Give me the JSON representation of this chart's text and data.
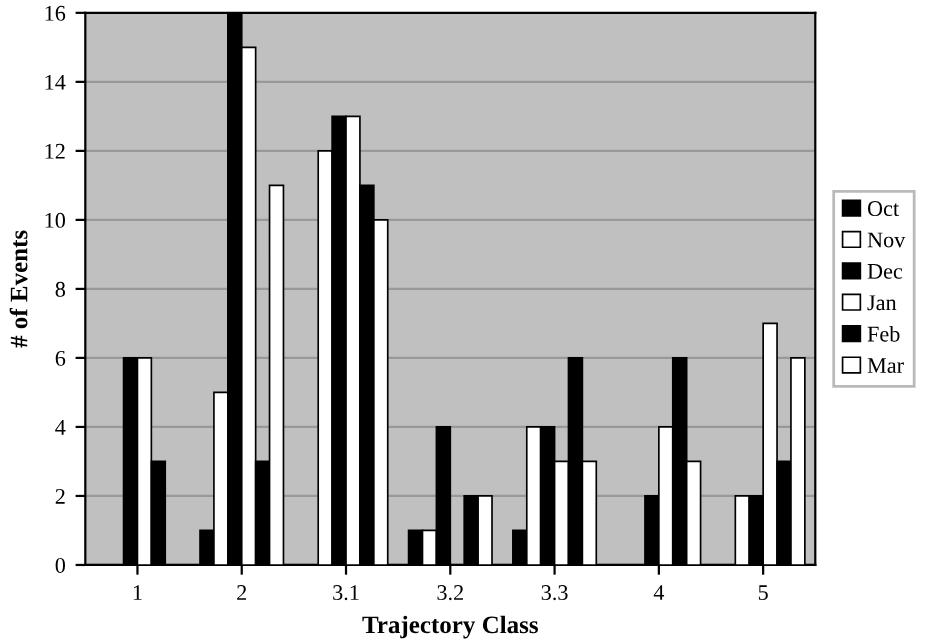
{
  "chart_data": {
    "type": "bar",
    "xlabel": "Trajectory Class",
    "ylabel": "# of Events",
    "categories": [
      "1",
      "2",
      "3.1",
      "3.2",
      "3.3",
      "4",
      "5"
    ],
    "series": [
      {
        "name": "Oct",
        "color": "#000000",
        "values": [
          0,
          1,
          0,
          1,
          1,
          0,
          0
        ]
      },
      {
        "name": "Nov",
        "color": "#ffffff",
        "values": [
          0,
          5,
          12,
          1,
          4,
          0,
          2
        ]
      },
      {
        "name": "Dec",
        "color": "#000000",
        "values": [
          6,
          16,
          13,
          4,
          4,
          2,
          2
        ]
      },
      {
        "name": "Jan",
        "color": "#ffffff",
        "values": [
          6,
          15,
          13,
          0,
          3,
          4,
          7
        ]
      },
      {
        "name": "Feb",
        "color": "#000000",
        "values": [
          3,
          3,
          11,
          2,
          6,
          6,
          3
        ]
      },
      {
        "name": "Mar",
        "color": "#ffffff",
        "values": [
          0,
          11,
          10,
          2,
          3,
          3,
          6
        ]
      }
    ],
    "ylim": [
      0,
      16
    ],
    "yticks": [
      0,
      2,
      4,
      6,
      8,
      10,
      12,
      14,
      16
    ],
    "grid": "y",
    "legend": "right"
  }
}
